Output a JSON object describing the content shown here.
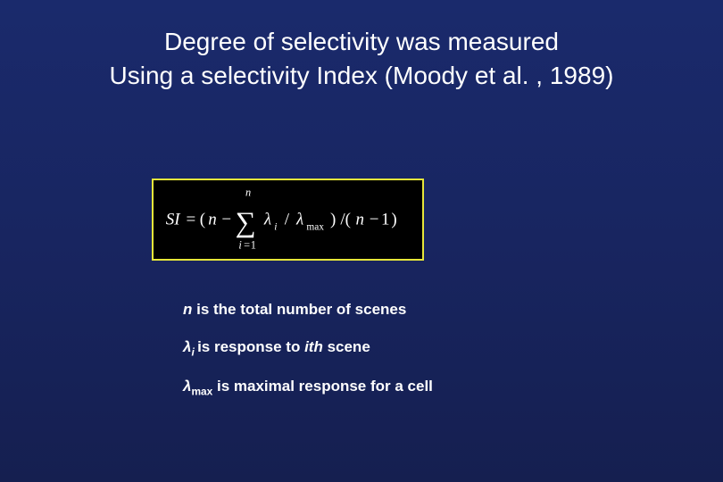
{
  "title": {
    "line1": "Degree of selectivity was measured",
    "line2": "Using a selectivity Index (Moody et al. , 1989)"
  },
  "formula": {
    "lhs": "SI",
    "eq": "=",
    "open_paren": "(",
    "n": "n",
    "minus": "−",
    "sigma_upper": "n",
    "sigma_lower_var": "i",
    "sigma_lower_eq": "=",
    "sigma_lower_val": "1",
    "term_lambda": "λ",
    "term_sub": "i",
    "slash": "/",
    "term2_lambda": "λ",
    "term2_sub": "max",
    "close_paren": ")",
    "div": "/(",
    "n2": "n",
    "minus2": "−",
    "one": "1",
    "close2": ")"
  },
  "definitions": {
    "d1_var": "n",
    "d1_text": " is the total number of scenes",
    "d2_var": "λ",
    "d2_sub": "i ",
    "d2_text": "is response to ",
    "d2_ith": "ith",
    "d2_text2": " scene",
    "d3_var": "λ",
    "d3_sub": "max",
    "d3_text": " is maximal response for a cell"
  },
  "colors": {
    "formula_border": "#e6e63a",
    "formula_bg": "#000000",
    "text": "#ffffff"
  }
}
